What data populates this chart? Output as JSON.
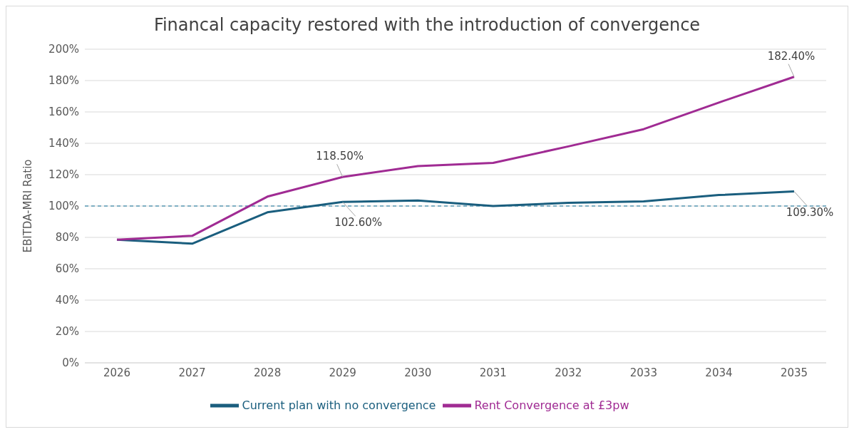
{
  "chart_data": {
    "type": "line",
    "title": "Financal capacity restored with the introduction of convergence",
    "ylabel": "EBITDA-MRI Ratio",
    "categories": [
      "2026",
      "2027",
      "2028",
      "2029",
      "2030",
      "2031",
      "2032",
      "2033",
      "2034",
      "2035"
    ],
    "series": [
      {
        "name": "Current plan with no convergence",
        "color": "#1a5e7e",
        "values": [
          78.5,
          76,
          96,
          102.6,
          103.5,
          100,
          102,
          103,
          107,
          109.3
        ],
        "value_labels": [
          null,
          null,
          null,
          "102.60%",
          null,
          null,
          null,
          null,
          null,
          "109.30%"
        ]
      },
      {
        "name": "Rent Convergence at £3pw",
        "color": "#a02b93",
        "values": [
          78.5,
          81,
          106,
          118.5,
          125.5,
          127.5,
          138,
          149,
          166,
          182.4
        ],
        "value_labels": [
          null,
          null,
          null,
          "118.50%",
          null,
          null,
          null,
          null,
          null,
          "182.40%"
        ]
      }
    ],
    "ylim": [
      0,
      200
    ],
    "yticks": [
      {
        "value": 0,
        "label": "0%"
      },
      {
        "value": 20,
        "label": "20%"
      },
      {
        "value": 40,
        "label": "40%"
      },
      {
        "value": 60,
        "label": "60%"
      },
      {
        "value": 80,
        "label": "80%"
      },
      {
        "value": 100,
        "label": "100%"
      },
      {
        "value": 120,
        "label": "120%"
      },
      {
        "value": 140,
        "label": "140%"
      },
      {
        "value": 160,
        "label": "160%"
      },
      {
        "value": 180,
        "label": "180%"
      },
      {
        "value": 200,
        "label": "200%"
      }
    ],
    "ref_lines": [
      {
        "axis": "y",
        "value": 100,
        "color": "#5b9bb5",
        "line_style": "dashed"
      }
    ],
    "grid": "y",
    "legend": "bottom",
    "marker": "none",
    "line_style": "solid"
  }
}
